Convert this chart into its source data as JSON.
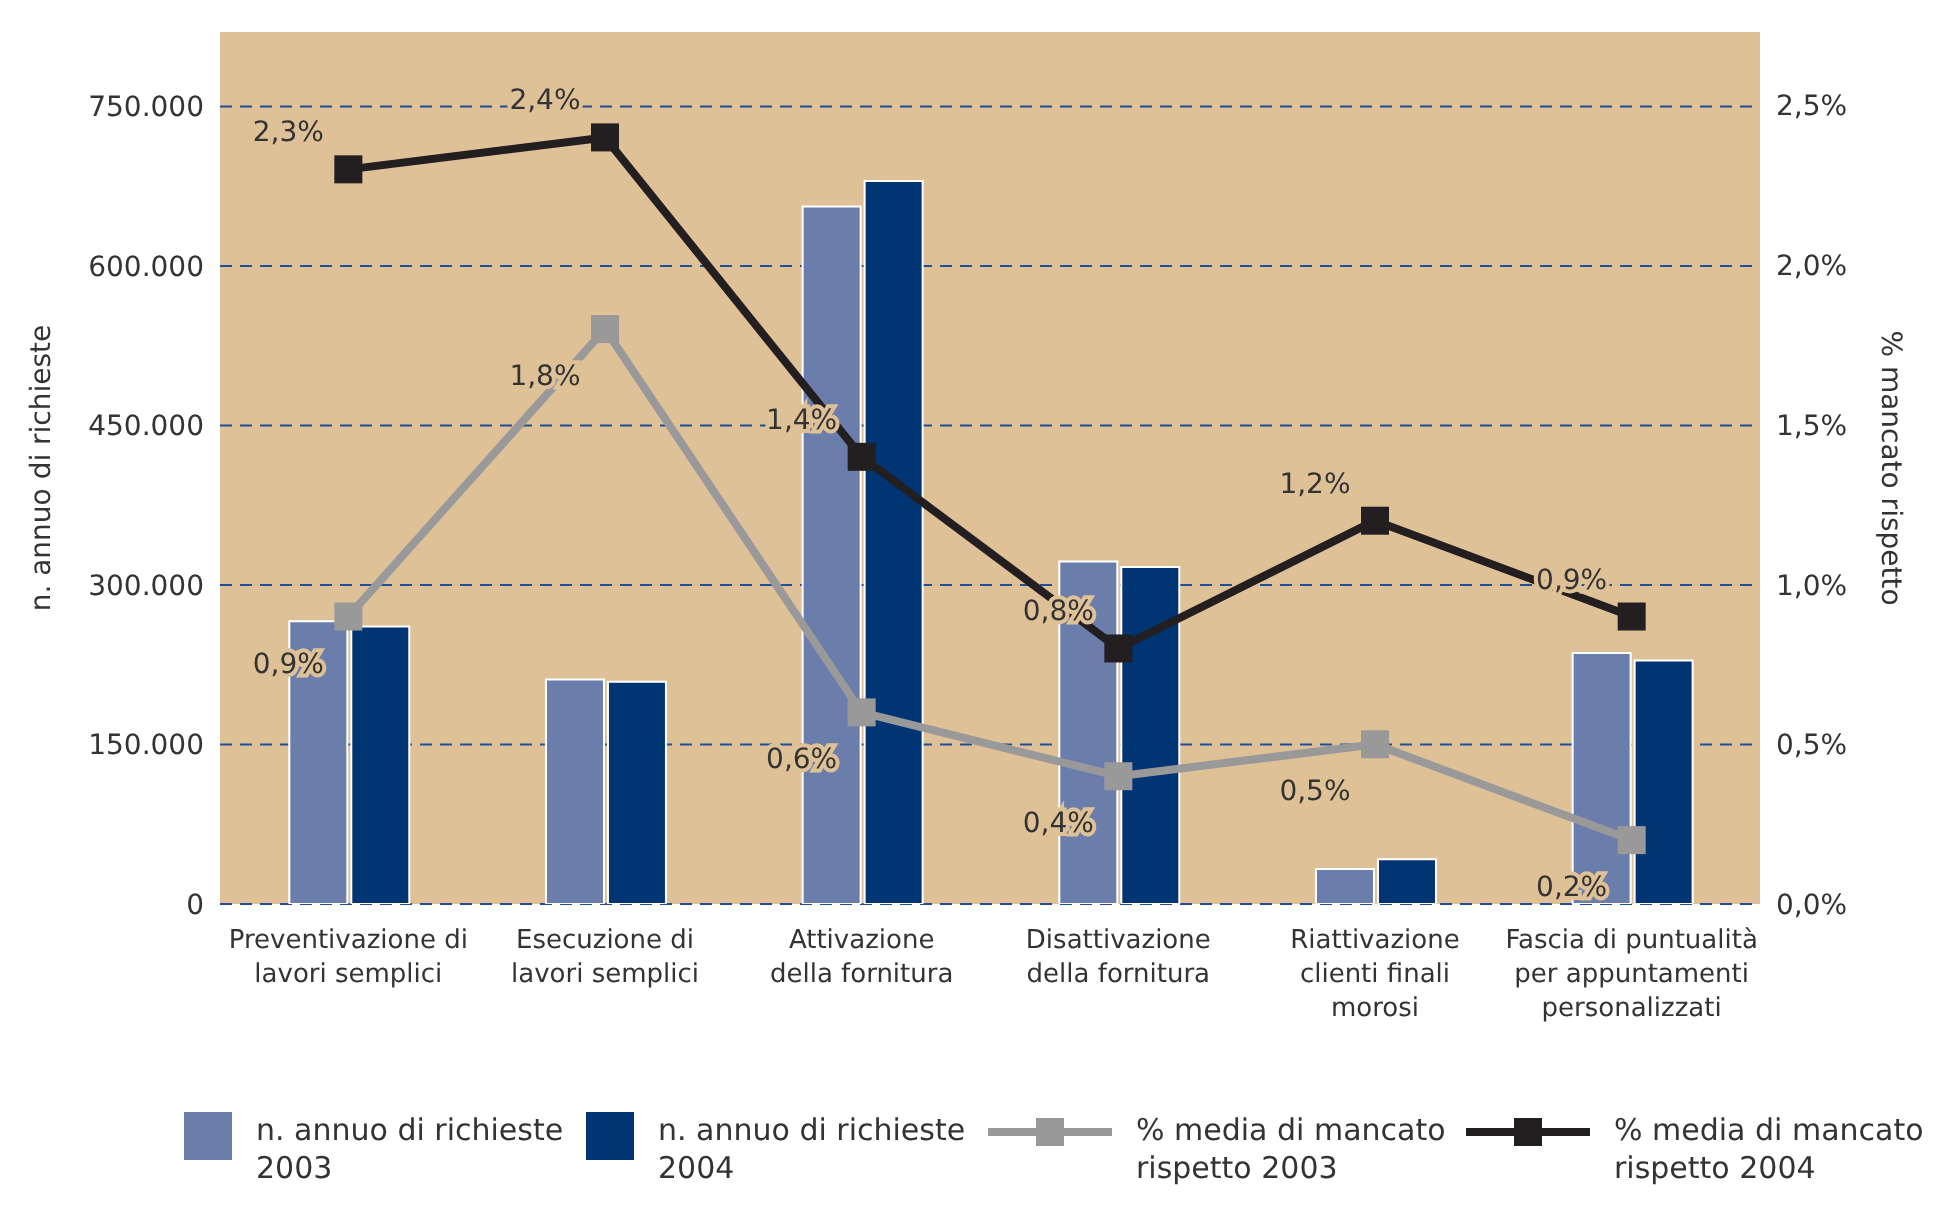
{
  "chart_data": {
    "type": "bar",
    "ylabel": "n. annuo di richieste",
    "y2label": "% mancato rispetto",
    "categories": [
      "Preventivazione di\nlavori semplici",
      "Esecuzione di\nlavori semplici",
      "Attivazione\ndella fornitura",
      "Disattivazione\ndella fornitura",
      "Riattivazione\nclienti finali\nmorosi",
      "Fascia di puntualità\nper appuntamenti\npersonalizzati"
    ],
    "series": [
      {
        "name": "n. annuo di richieste 2003",
        "color": "#6b7eab",
        "values": [
          266000,
          211000,
          656000,
          322000,
          33000,
          236000
        ]
      },
      {
        "name": "n. annuo di richieste 2004",
        "color": "#003473",
        "values": [
          261000,
          209000,
          680000,
          317000,
          42000,
          229000
        ]
      },
      {
        "name": "% media di mancato rispetto 2003",
        "type": "line",
        "axis": "y2",
        "color": "#999999",
        "values": [
          0.9,
          1.8,
          0.6,
          0.4,
          0.5,
          0.2
        ],
        "value_labels": [
          "0,9%",
          "1,8%",
          "0,6%",
          "0,4%",
          "0,5%",
          "0,2%"
        ]
      },
      {
        "name": "% media di mancato rispetto 2004",
        "type": "line",
        "axis": "y2",
        "color": "#231f20",
        "values": [
          2.3,
          2.4,
          1.4,
          0.8,
          1.2,
          0.9
        ],
        "value_labels": [
          "2,3%",
          "2,4%",
          "1,4%",
          "0,8%",
          "1,2%",
          "0,9%"
        ]
      }
    ],
    "ylim": [
      0,
      820000
    ],
    "yticks": [
      {
        "value": 0,
        "label": "0"
      },
      {
        "value": 150000,
        "label": "150.000"
      },
      {
        "value": 300000,
        "label": "300.000"
      },
      {
        "value": 450000,
        "label": "450.000"
      },
      {
        "value": 600000,
        "label": "600.000"
      },
      {
        "value": 750000,
        "label": "750.000"
      }
    ],
    "y2lim": [
      0,
      2.73
    ],
    "y2ticks": [
      {
        "value": 0,
        "label": "0,0%"
      },
      {
        "value": 0.5,
        "label": "0,5%"
      },
      {
        "value": 1,
        "label": "1,0%"
      },
      {
        "value": 1.5,
        "label": "1,5%"
      },
      {
        "value": 2,
        "label": "2,0%"
      },
      {
        "value": 2.5,
        "label": "2,5%"
      }
    ],
    "grid": "y",
    "legend": "bottom",
    "marker": "square",
    "line_style": "solid"
  }
}
